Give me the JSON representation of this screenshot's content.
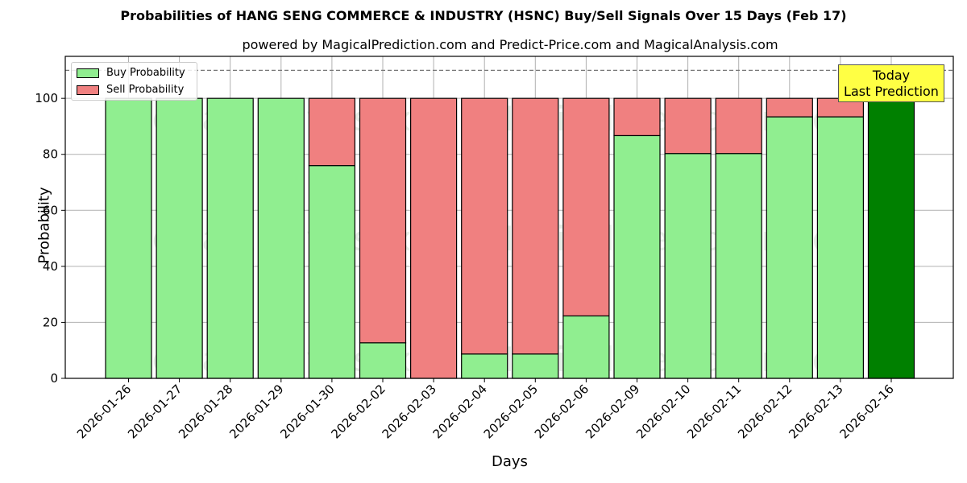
{
  "chart_data": {
    "type": "bar",
    "stacked": true,
    "title": "Probabilities of HANG SENG COMMERCE & INDUSTRY (HSNC) Buy/Sell Signals Over 15 Days (Feb 17)",
    "subtitle": "powered by MagicalPrediction.com and Predict-Price.com and MagicalAnalysis.com",
    "xlabel": "Days",
    "ylabel": "Probability",
    "ylim": [
      0,
      115
    ],
    "yticks": [
      0,
      20,
      40,
      60,
      80,
      100
    ],
    "reference_line": 110,
    "grid": true,
    "legend_position": "upper left",
    "categories": [
      "2026-01-26",
      "2026-01-27",
      "2026-01-28",
      "2026-01-29",
      "2026-01-30",
      "2026-02-02",
      "2026-02-03",
      "2026-02-04",
      "2026-02-05",
      "2026-02-06",
      "2026-02-09",
      "2026-02-10",
      "2026-02-11",
      "2026-02-12",
      "2026-02-13",
      "2026-02-16"
    ],
    "series": [
      {
        "name": "Buy Probability",
        "color": "#90ee90",
        "values": [
          100,
          100,
          100,
          100,
          76,
          12.7,
          0,
          8.7,
          8.7,
          22.3,
          86.7,
          80.3,
          80.3,
          93.4,
          93.4,
          100
        ]
      },
      {
        "name": "Sell Probability",
        "color": "#f08080",
        "values": [
          0,
          0,
          0,
          0,
          24,
          87.3,
          100,
          91.3,
          91.3,
          77.7,
          13.3,
          19.7,
          19.7,
          6.6,
          6.6,
          0
        ]
      }
    ],
    "highlight": {
      "index": 15,
      "color": "#008000",
      "label_line1": "Today",
      "label_line2": "Last Prediction"
    },
    "watermarks": [
      "MagicalAnalysis.com",
      "MagicalPrediction.com"
    ]
  }
}
